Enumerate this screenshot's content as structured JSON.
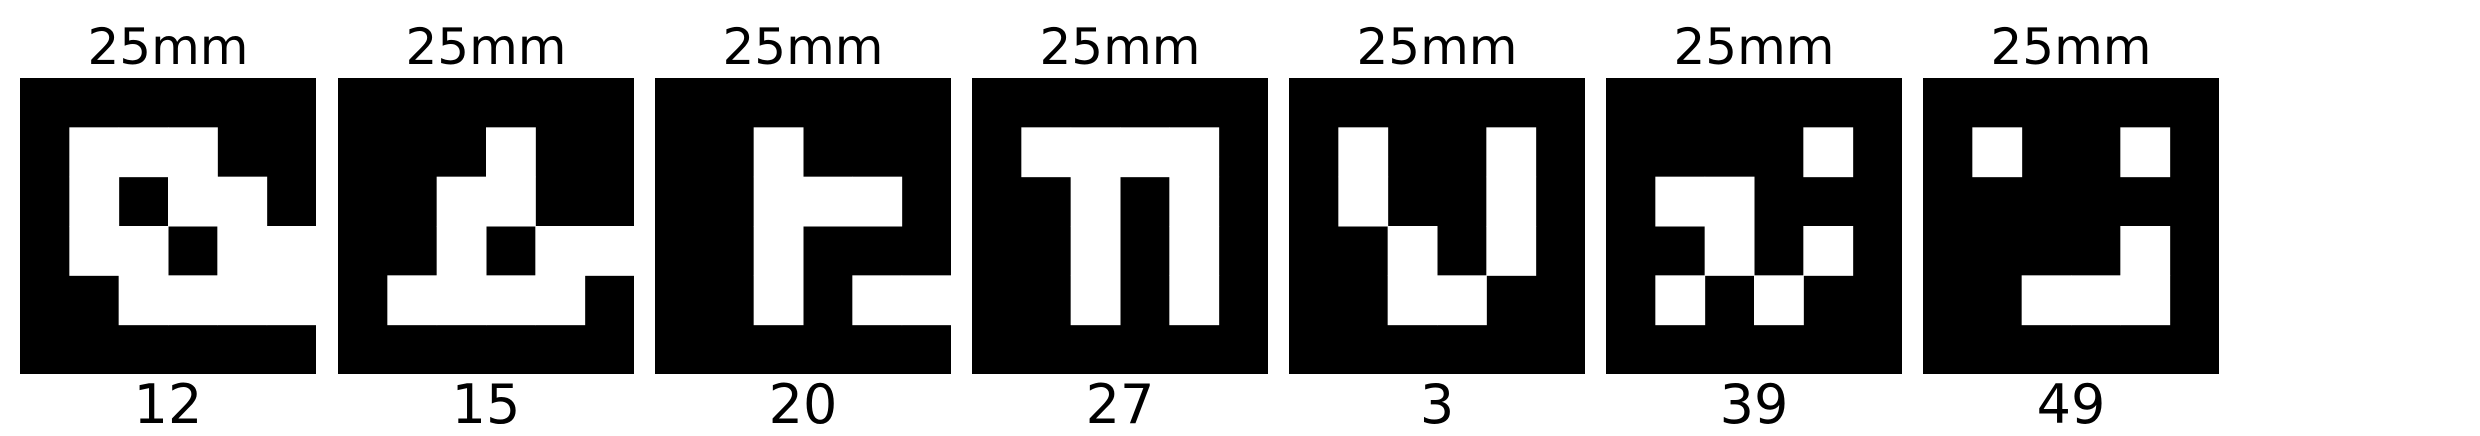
{
  "markers": [
    {
      "size_label": "25mm",
      "id_label": "12",
      "pattern": [
        "000000",
        "011100",
        "010110",
        "011011",
        "001111",
        "000000"
      ]
    },
    {
      "size_label": "25mm",
      "id_label": "15",
      "pattern": [
        "000000",
        "000100",
        "001100",
        "001011",
        "011110",
        "000000"
      ]
    },
    {
      "size_label": "25mm",
      "id_label": "20",
      "pattern": [
        "000000",
        "001000",
        "001110",
        "001000",
        "001011",
        "000000"
      ]
    },
    {
      "size_label": "25mm",
      "id_label": "27",
      "pattern": [
        "000000",
        "011110",
        "001010",
        "001010",
        "001010",
        "000000"
      ]
    },
    {
      "size_label": "25mm",
      "id_label": "3",
      "pattern": [
        "000000",
        "010010",
        "010010",
        "001010",
        "001100",
        "000000"
      ]
    },
    {
      "size_label": "25mm",
      "id_label": "39",
      "pattern": [
        "000000",
        "000010",
        "011000",
        "001010",
        "010100",
        "000000"
      ]
    },
    {
      "size_label": "25mm",
      "id_label": "49",
      "pattern": [
        "000000",
        "010010",
        "000000",
        "000010",
        "001110",
        "000000"
      ]
    }
  ]
}
